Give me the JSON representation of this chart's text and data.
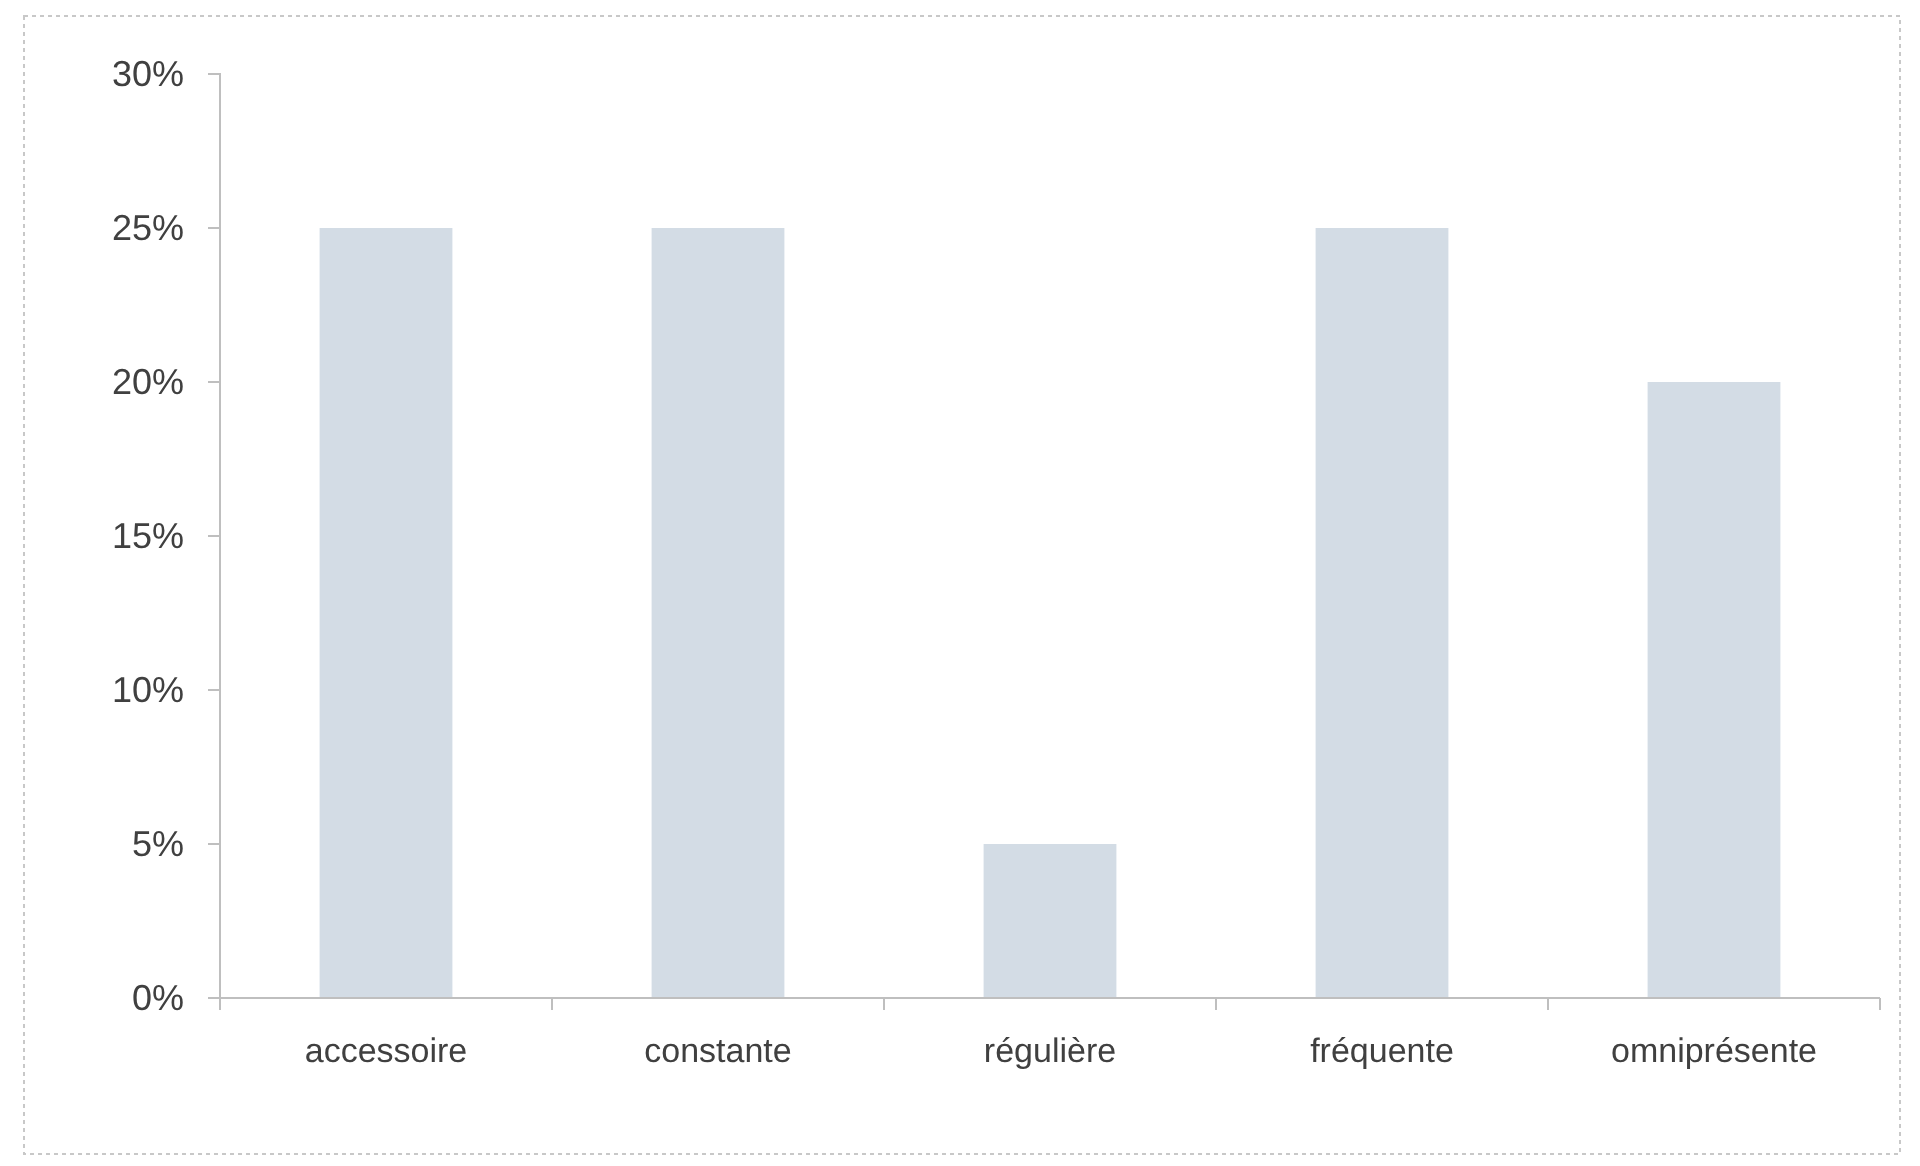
{
  "chart_data": {
    "type": "bar",
    "categories": [
      "accessoire",
      "constante",
      "régulière",
      "fréquente",
      "omniprésente"
    ],
    "values": [
      25,
      25,
      5,
      25,
      20
    ],
    "color": "#d3dce5",
    "ylim": [
      0,
      30
    ],
    "yticks": [
      {
        "value": 0,
        "label": "0%"
      },
      {
        "value": 5,
        "label": "5%"
      },
      {
        "value": 10,
        "label": "10%"
      },
      {
        "value": 15,
        "label": "15%"
      },
      {
        "value": 20,
        "label": "20%"
      },
      {
        "value": 25,
        "label": "25%"
      },
      {
        "value": 30,
        "label": "30%"
      }
    ]
  }
}
